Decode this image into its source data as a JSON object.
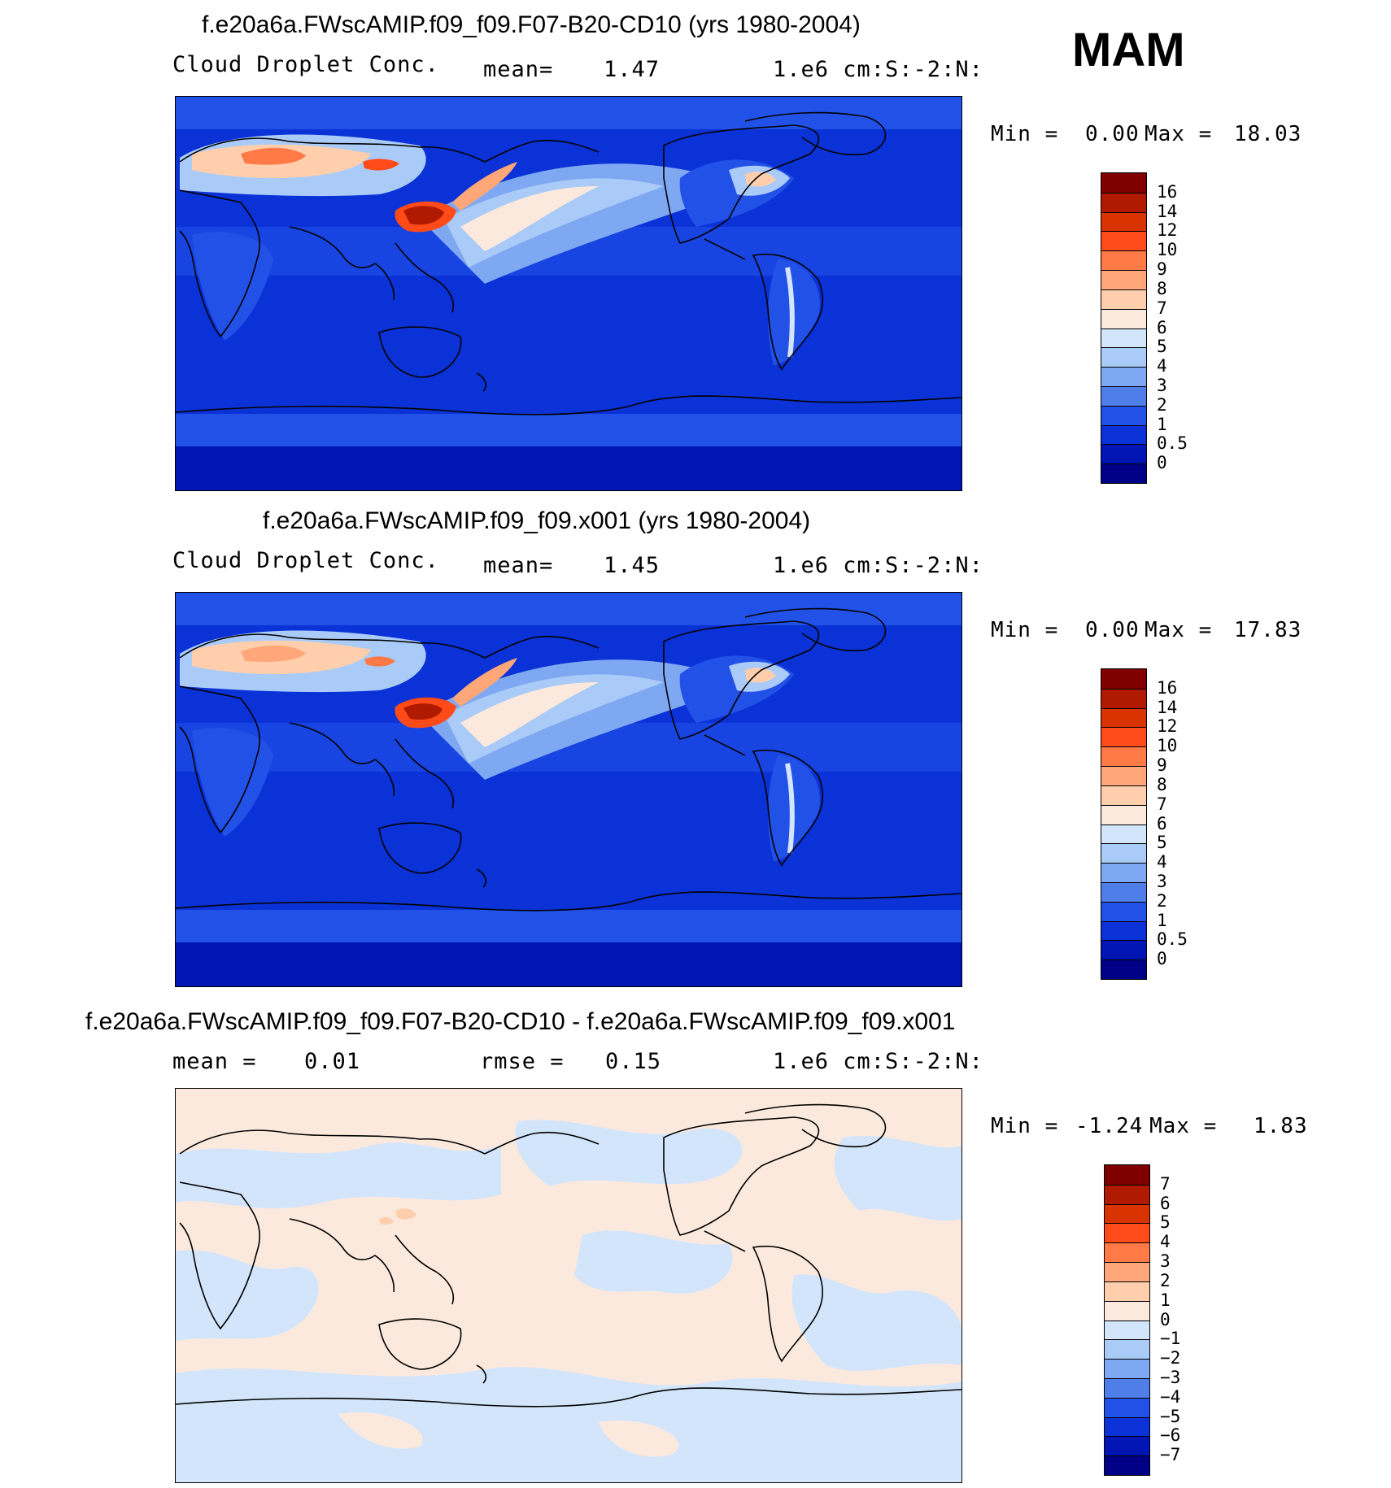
{
  "season": "MAM",
  "panels": [
    {
      "title": "f.e20a6a.FWscAMIP.f09_f09.F07-B20-CD10 (yrs 1980-2004)",
      "left_label": "Cloud Droplet Conc.",
      "stat_label": "mean=",
      "stat_value": "1.47",
      "units": "1.e6 cm:S:-2:N:",
      "min_label": "Min =",
      "min_value": "0.00",
      "max_label": "Max =",
      "max_value": "18.03",
      "levels": [
        "16",
        "14",
        "12",
        "10",
        "9",
        "8",
        "7",
        "6",
        "5",
        "4",
        "3",
        "2",
        "1",
        "0.5",
        "0"
      ],
      "colors": [
        "#800000",
        "#b01a00",
        "#d93300",
        "#ff4b19",
        "#ff7a46",
        "#ffa779",
        "#ffcfad",
        "#fbe9de",
        "#d3e5fb",
        "#aacbf7",
        "#7fa8f2",
        "#4f7ee8",
        "#2251e8",
        "#0a32d6",
        "#0015b4",
        "#000086"
      ]
    },
    {
      "title": "f.e20a6a.FWscAMIP.f09_f09.x001 (yrs 1980-2004)",
      "left_label": "Cloud Droplet Conc.",
      "stat_label": "mean=",
      "stat_value": "1.45",
      "units": "1.e6 cm:S:-2:N:",
      "min_label": "Min =",
      "min_value": "0.00",
      "max_label": "Max =",
      "max_value": "17.83",
      "levels": [
        "16",
        "14",
        "12",
        "10",
        "9",
        "8",
        "7",
        "6",
        "5",
        "4",
        "3",
        "2",
        "1",
        "0.5",
        "0"
      ],
      "colors": [
        "#800000",
        "#b01a00",
        "#d93300",
        "#ff4b19",
        "#ff7a46",
        "#ffa779",
        "#ffcfad",
        "#fbe9de",
        "#d3e5fb",
        "#aacbf7",
        "#7fa8f2",
        "#4f7ee8",
        "#2251e8",
        "#0a32d6",
        "#0015b4",
        "#000086"
      ]
    },
    {
      "title": "f.e20a6a.FWscAMIP.f09_f09.F07-B20-CD10 - f.e20a6a.FWscAMIP.f09_f09.x001",
      "left_label": "mean =",
      "left_value": "0.01",
      "stat_label": "rmse =",
      "stat_value": "0.15",
      "units": "1.e6 cm:S:-2:N:",
      "min_label": "Min =",
      "min_value": "-1.24",
      "max_label": "Max =",
      "max_value": "1.83",
      "levels": [
        "7",
        "6",
        "5",
        "4",
        "3",
        "2",
        "1",
        "0",
        "-1",
        "-2",
        "-3",
        "-4",
        "-5",
        "-6",
        "-7"
      ],
      "colors": [
        "#800000",
        "#b01a00",
        "#d93300",
        "#ff4b19",
        "#ff7a46",
        "#ffa779",
        "#ffcfad",
        "#fbe9de",
        "#d3e5fb",
        "#aacbf7",
        "#7fa8f2",
        "#4f7ee8",
        "#2251e8",
        "#0a32d6",
        "#0015b4",
        "#000086"
      ]
    }
  ]
}
